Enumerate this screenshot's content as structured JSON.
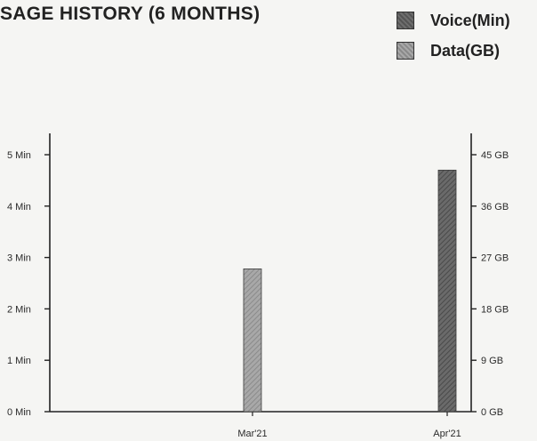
{
  "header": {
    "title": "SAGE HISTORY (6 MONTHS)"
  },
  "legend": {
    "items": [
      {
        "label": "Voice(Min)",
        "icon": "voice-swatch",
        "color": "#5f5f5f"
      },
      {
        "label": "Data(GB)",
        "icon": "data-swatch",
        "color": "#9a9a9a"
      }
    ]
  },
  "chart_data": {
    "type": "bar",
    "title": "SAGE HISTORY (6 MONTHS)",
    "categories": [
      "Mar'21",
      "Apr'21"
    ],
    "series": [
      {
        "name": "Voice(Min)",
        "axis": "left",
        "values": [
          0,
          4.7
        ],
        "color": "#5f5f5f"
      },
      {
        "name": "Data(GB)",
        "axis": "right",
        "values": [
          25,
          0
        ],
        "color": "#9a9a9a"
      }
    ],
    "y_left": {
      "ticks": [
        "0 Min",
        "1 Min",
        "2 Min",
        "3 Min",
        "4 Min",
        "5 Min"
      ],
      "ylim": [
        0,
        5
      ]
    },
    "y_right": {
      "ticks": [
        "0 GB",
        "9 GB",
        "18 GB",
        "27 GB",
        "36 GB",
        "45 GB"
      ],
      "ylim": [
        0,
        45
      ]
    },
    "grid": false,
    "legend_position": "top-right"
  }
}
